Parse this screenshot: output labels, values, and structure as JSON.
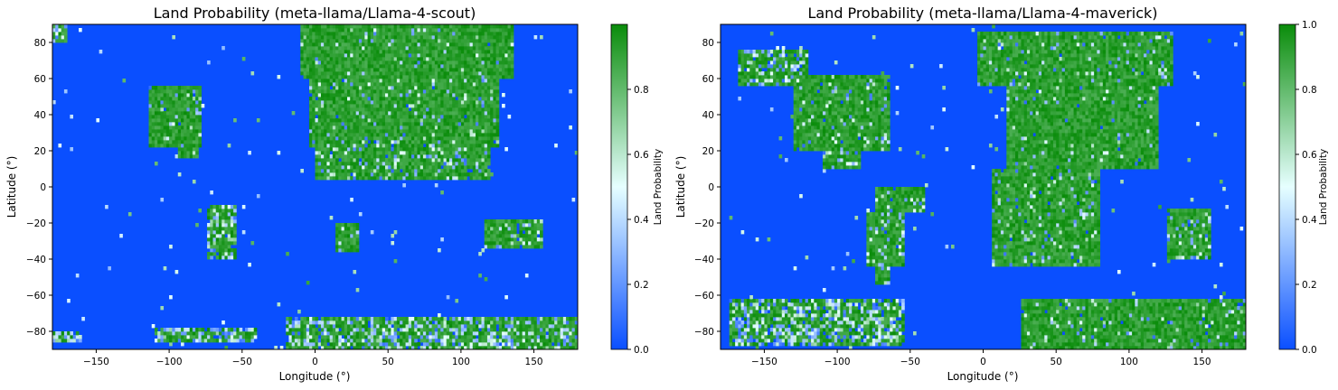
{
  "chart_data": [
    {
      "type": "heatmap",
      "title": "Land Probability (meta-llama/Llama-4-scout)",
      "xlabel": "Longitude (°)",
      "ylabel": "Latitude (°)",
      "xlim": [
        -180,
        180
      ],
      "ylim": [
        -90,
        90
      ],
      "xticks": [
        -150,
        -100,
        -50,
        0,
        50,
        100,
        150
      ],
      "yticks": [
        -80,
        -60,
        -40,
        -20,
        0,
        20,
        40,
        60,
        80
      ],
      "colorbar": {
        "label": "Land Probability",
        "range": [
          0,
          1
        ],
        "ticks": [
          "0.0",
          "0.2",
          "0.4",
          "0.6",
          "0.8"
        ]
      },
      "colors": {
        "low": "#0a4fff",
        "mid": "#e6ffff",
        "high": "#0a8c0a"
      },
      "grid": false,
      "cell_size_deg": 2,
      "regions": [
        {
          "lon": [
            -115,
            -78
          ],
          "lat": [
            22,
            55
          ],
          "value": 0.93
        },
        {
          "lon": [
            -95,
            -80
          ],
          "lat": [
            15,
            28
          ],
          "value": 0.85
        },
        {
          "lon": [
            -10,
            135
          ],
          "lat": [
            60,
            90
          ],
          "value": 0.95
        },
        {
          "lon": [
            -5,
            125
          ],
          "lat": [
            22,
            62
          ],
          "value": 0.9
        },
        {
          "lon": [
            0,
            120
          ],
          "lat": [
            3,
            24
          ],
          "value": 0.8
        },
        {
          "lon": [
            13,
            30
          ],
          "lat": [
            -36,
            -20
          ],
          "value": 0.92
        },
        {
          "lon": [
            -75,
            -55
          ],
          "lat": [
            -40,
            -10
          ],
          "value": 0.7
        },
        {
          "lon": [
            115,
            155
          ],
          "lat": [
            -35,
            -18
          ],
          "value": 0.8
        },
        {
          "lon": [
            -20,
            180
          ],
          "lat": [
            -90,
            -72
          ],
          "value": 0.62
        },
        {
          "lon": [
            -110,
            -40
          ],
          "lat": [
            -86,
            -78
          ],
          "value": 0.55
        },
        {
          "lon": [
            -180,
            -160
          ],
          "lat": [
            -86,
            -80
          ],
          "value": 0.4
        },
        {
          "lon": [
            -180,
            -170
          ],
          "lat": [
            80,
            90
          ],
          "value": 0.55
        }
      ]
    },
    {
      "type": "heatmap",
      "title": "Land Probability (meta-llama/Llama-4-maverick)",
      "xlabel": "Longitude (°)",
      "ylabel": "Latitude (°)",
      "xlim": [
        -180,
        180
      ],
      "ylim": [
        -90,
        90
      ],
      "xticks": [
        -150,
        -100,
        -50,
        0,
        50,
        100,
        150
      ],
      "yticks": [
        -80,
        -60,
        -40,
        -20,
        0,
        20,
        40,
        60,
        80
      ],
      "colorbar": {
        "label": "Land Probability",
        "range": [
          0,
          1
        ],
        "ticks": [
          "0.0",
          "0.2",
          "0.4",
          "0.6",
          "0.8",
          "1.0"
        ]
      },
      "colors": {
        "low": "#0a4fff",
        "mid": "#e6ffff",
        "high": "#0a8c0a"
      },
      "grid": false,
      "cell_size_deg": 2,
      "regions": [
        {
          "lon": [
            -168,
            -120
          ],
          "lat": [
            55,
            75
          ],
          "value": 0.75
        },
        {
          "lon": [
            -130,
            -65
          ],
          "lat": [
            20,
            62
          ],
          "value": 0.9
        },
        {
          "lon": [
            -110,
            -85
          ],
          "lat": [
            10,
            28
          ],
          "value": 0.8
        },
        {
          "lon": [
            -75,
            -40
          ],
          "lat": [
            -15,
            0
          ],
          "value": 0.85
        },
        {
          "lon": [
            -80,
            -55
          ],
          "lat": [
            -45,
            -15
          ],
          "value": 0.85
        },
        {
          "lon": [
            -75,
            -65
          ],
          "lat": [
            -55,
            -45
          ],
          "value": 0.8
        },
        {
          "lon": [
            -5,
            130
          ],
          "lat": [
            55,
            85
          ],
          "value": 0.92
        },
        {
          "lon": [
            15,
            120
          ],
          "lat": [
            10,
            55
          ],
          "value": 0.95
        },
        {
          "lon": [
            5,
            80
          ],
          "lat": [
            -45,
            10
          ],
          "value": 0.88
        },
        {
          "lon": [
            125,
            155
          ],
          "lat": [
            -40,
            -12
          ],
          "value": 0.85
        },
        {
          "lon": [
            25,
            180
          ],
          "lat": [
            -90,
            -62
          ],
          "value": 0.9
        },
        {
          "lon": [
            -175,
            -55
          ],
          "lat": [
            -88,
            -62
          ],
          "value": 0.55
        }
      ]
    }
  ]
}
